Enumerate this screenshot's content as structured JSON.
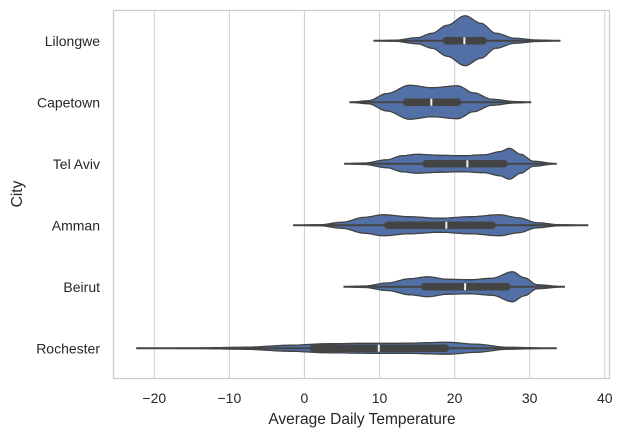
{
  "chart_data": {
    "type": "violin",
    "orientation": "horizontal",
    "title": "",
    "xlabel": "Average Daily Temperature",
    "ylabel": "City",
    "xlim": [
      -25.5,
      40.7
    ],
    "xticks": [
      -20,
      -10,
      0,
      10,
      20,
      30,
      40
    ],
    "xtick_labels": [
      "−20",
      "−10",
      "0",
      "10",
      "20",
      "30",
      "40"
    ],
    "grid": "vertical",
    "colors": {
      "fill": "#5270a6",
      "edge": "#424242",
      "box": "#444444",
      "median": "#f2f2f2",
      "grid": "#d3d3d3",
      "frame": "#cccccc"
    },
    "categories": [
      "Lilongwe",
      "Capetown",
      "Tel Aviv",
      "Amman",
      "Beirut",
      "Rochester"
    ],
    "series": [
      {
        "name": "Lilongwe",
        "min": 9.2,
        "q1": 18.9,
        "median": 21.3,
        "q3": 23.8,
        "max": 34.1,
        "density": [
          [
            9.2,
            0
          ],
          [
            12,
            0.02
          ],
          [
            15,
            0.12
          ],
          [
            17,
            0.3
          ],
          [
            19,
            0.62
          ],
          [
            21.4,
            1.0
          ],
          [
            23.5,
            0.7
          ],
          [
            25.5,
            0.3
          ],
          [
            28,
            0.1
          ],
          [
            31,
            0.03
          ],
          [
            34.1,
            0
          ]
        ]
      },
      {
        "name": "Capetown",
        "min": 6.0,
        "q1": 13.6,
        "median": 16.9,
        "q3": 20.4,
        "max": 30.2,
        "density": [
          [
            6.0,
            0
          ],
          [
            8.5,
            0.06
          ],
          [
            11,
            0.35
          ],
          [
            14,
            0.68
          ],
          [
            17,
            0.58
          ],
          [
            20.4,
            0.66
          ],
          [
            22.5,
            0.38
          ],
          [
            25,
            0.12
          ],
          [
            28,
            0.03
          ],
          [
            30.2,
            0
          ]
        ]
      },
      {
        "name": "Tel Aviv",
        "min": 5.3,
        "q1": 16.2,
        "median": 21.7,
        "q3": 26.6,
        "max": 33.6,
        "density": [
          [
            5.3,
            0
          ],
          [
            8,
            0.03
          ],
          [
            11,
            0.16
          ],
          [
            13,
            0.32
          ],
          [
            15,
            0.38
          ],
          [
            18,
            0.34
          ],
          [
            21,
            0.32
          ],
          [
            24,
            0.36
          ],
          [
            26,
            0.48
          ],
          [
            27.3,
            0.62
          ],
          [
            28.8,
            0.38
          ],
          [
            30.5,
            0.1
          ],
          [
            33.6,
            0
          ]
        ]
      },
      {
        "name": "Amman",
        "min": -1.5,
        "q1": 11.1,
        "median": 18.9,
        "q3": 25.0,
        "max": 37.8,
        "density": [
          [
            -1.5,
            0
          ],
          [
            2,
            0.02
          ],
          [
            5,
            0.12
          ],
          [
            8,
            0.32
          ],
          [
            10.5,
            0.42
          ],
          [
            14,
            0.34
          ],
          [
            18,
            0.28
          ],
          [
            22,
            0.34
          ],
          [
            26,
            0.42
          ],
          [
            28.5,
            0.3
          ],
          [
            31,
            0.1
          ],
          [
            34,
            0.02
          ],
          [
            37.8,
            0
          ]
        ]
      },
      {
        "name": "Beirut",
        "min": 5.2,
        "q1": 16.0,
        "median": 21.4,
        "q3": 27.0,
        "max": 34.7,
        "density": [
          [
            5.2,
            0
          ],
          [
            8,
            0.03
          ],
          [
            11,
            0.15
          ],
          [
            14,
            0.32
          ],
          [
            16.4,
            0.4
          ],
          [
            19,
            0.3
          ],
          [
            22,
            0.28
          ],
          [
            25,
            0.34
          ],
          [
            27.7,
            0.6
          ],
          [
            29.3,
            0.36
          ],
          [
            31,
            0.08
          ],
          [
            34.7,
            0
          ]
        ]
      },
      {
        "name": "Rochester",
        "min": -22.4,
        "q1": 1.2,
        "median": 9.9,
        "q3": 18.8,
        "max": 33.6,
        "density": [
          [
            -22.4,
            0
          ],
          [
            -15,
            0.01
          ],
          [
            -8,
            0.04
          ],
          [
            -2,
            0.12
          ],
          [
            3,
            0.18
          ],
          [
            8,
            0.2
          ],
          [
            13,
            0.2
          ],
          [
            19,
            0.24
          ],
          [
            23,
            0.16
          ],
          [
            27,
            0.04
          ],
          [
            33.6,
            0
          ]
        ]
      }
    ]
  }
}
